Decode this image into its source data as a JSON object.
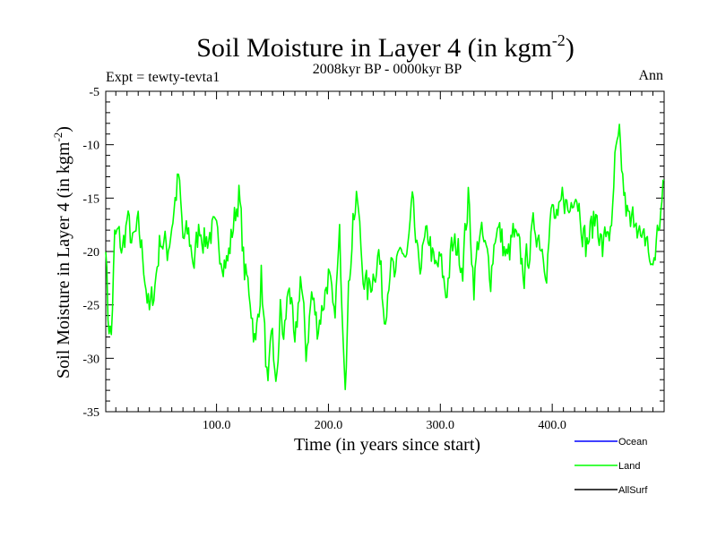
{
  "chart_data": {
    "type": "line",
    "title": "Soil Moisture in Layer 4 (in kgm",
    "title_sup": "-2",
    "title_close": ")",
    "subtitle": "2008kyr BP - 0000kyr BP",
    "left_label": "Expt = tewty-tevta1",
    "right_label": "Ann",
    "xlabel": "Time (in years since start)",
    "ylabel": "Soil Moisture in Layer 4 (in kgm",
    "ylabel_sup": "-2",
    "ylabel_close": ")",
    "xlim": [
      1,
      500
    ],
    "ylim": [
      -35,
      -5
    ],
    "x_ticks": [
      100,
      200,
      300,
      400
    ],
    "x_tick_labels": [
      "100.0",
      "200.0",
      "300.0",
      "400.0"
    ],
    "y_ticks": [
      -35,
      -30,
      -25,
      -20,
      -15,
      -10,
      -5
    ],
    "y_tick_labels": [
      "-35",
      "-30",
      "-25",
      "-20",
      "-15",
      "-10",
      "-5"
    ],
    "series": [
      {
        "name": "Land",
        "color": "#00ff00",
        "control_x": [
          1,
          3,
          6,
          9,
          12,
          16,
          20,
          25,
          30,
          35,
          40,
          45,
          50,
          56,
          62,
          66,
          70,
          75,
          80,
          85,
          90,
          96,
          100,
          105,
          110,
          115,
          120,
          125,
          130,
          135,
          140,
          143,
          146,
          150,
          153,
          157,
          160,
          165,
          170,
          175,
          180,
          185,
          190,
          195,
          200,
          205,
          210,
          215,
          218,
          222,
          226,
          230,
          235,
          240,
          245,
          250,
          255,
          260,
          265,
          270,
          275,
          280,
          285,
          290,
          295,
          300,
          305,
          310,
          315,
          320,
          325,
          330,
          335,
          340,
          345,
          350,
          355,
          360,
          365,
          370,
          375,
          380,
          385,
          390,
          395,
          400,
          405,
          410,
          415,
          420,
          425,
          430,
          435,
          440,
          445,
          450,
          453,
          456,
          460,
          465,
          470,
          475,
          480,
          485,
          488,
          492,
          496,
          500
        ],
        "control_y": [
          -18.5,
          -26,
          -28,
          -19,
          -18.5,
          -20,
          -17,
          -19.5,
          -18,
          -21,
          -26,
          -23,
          -18.5,
          -20,
          -16,
          -13,
          -19,
          -18.5,
          -21,
          -17.5,
          -19,
          -18,
          -19,
          -20,
          -21,
          -17.5,
          -14.5,
          -22,
          -24,
          -29,
          -22,
          -28,
          -33.5,
          -27.5,
          -33.5,
          -25.5,
          -28.5,
          -22.5,
          -30,
          -22,
          -29.5,
          -24,
          -27,
          -25,
          -22,
          -27,
          -19,
          -31,
          -24,
          -16.5,
          -15.5,
          -21,
          -24,
          -22,
          -20,
          -26,
          -21,
          -23,
          -19.5,
          -21,
          -16,
          -21.5,
          -20,
          -18.5,
          -22,
          -21,
          -24,
          -20,
          -19.5,
          -21,
          -15,
          -23,
          -18,
          -20,
          -22,
          -17.5,
          -19,
          -21,
          -18.5,
          -20,
          -22,
          -19.5,
          -17.5,
          -19,
          -21,
          -16,
          -18,
          -14.5,
          -16.5,
          -13.5,
          -16,
          -19.5,
          -18,
          -16.5,
          -20,
          -17.5,
          -19,
          -12,
          -10,
          -15.5,
          -18,
          -16,
          -20,
          -18.5,
          -22,
          -20,
          -17,
          -14
        ],
        "noise_amplitude": 1.1,
        "noise_seed": 7
      },
      {
        "name": "Ocean",
        "color": "#0000ff"
      },
      {
        "name": "AllSurf",
        "color": "#000000"
      }
    ],
    "legend": {
      "placement": "bottom-right",
      "entries": [
        {
          "label": "Ocean",
          "color": "#0000ff"
        },
        {
          "label": "Land",
          "color": "#00ff00"
        },
        {
          "label": "AllSurf",
          "color": "#000000"
        }
      ]
    }
  }
}
